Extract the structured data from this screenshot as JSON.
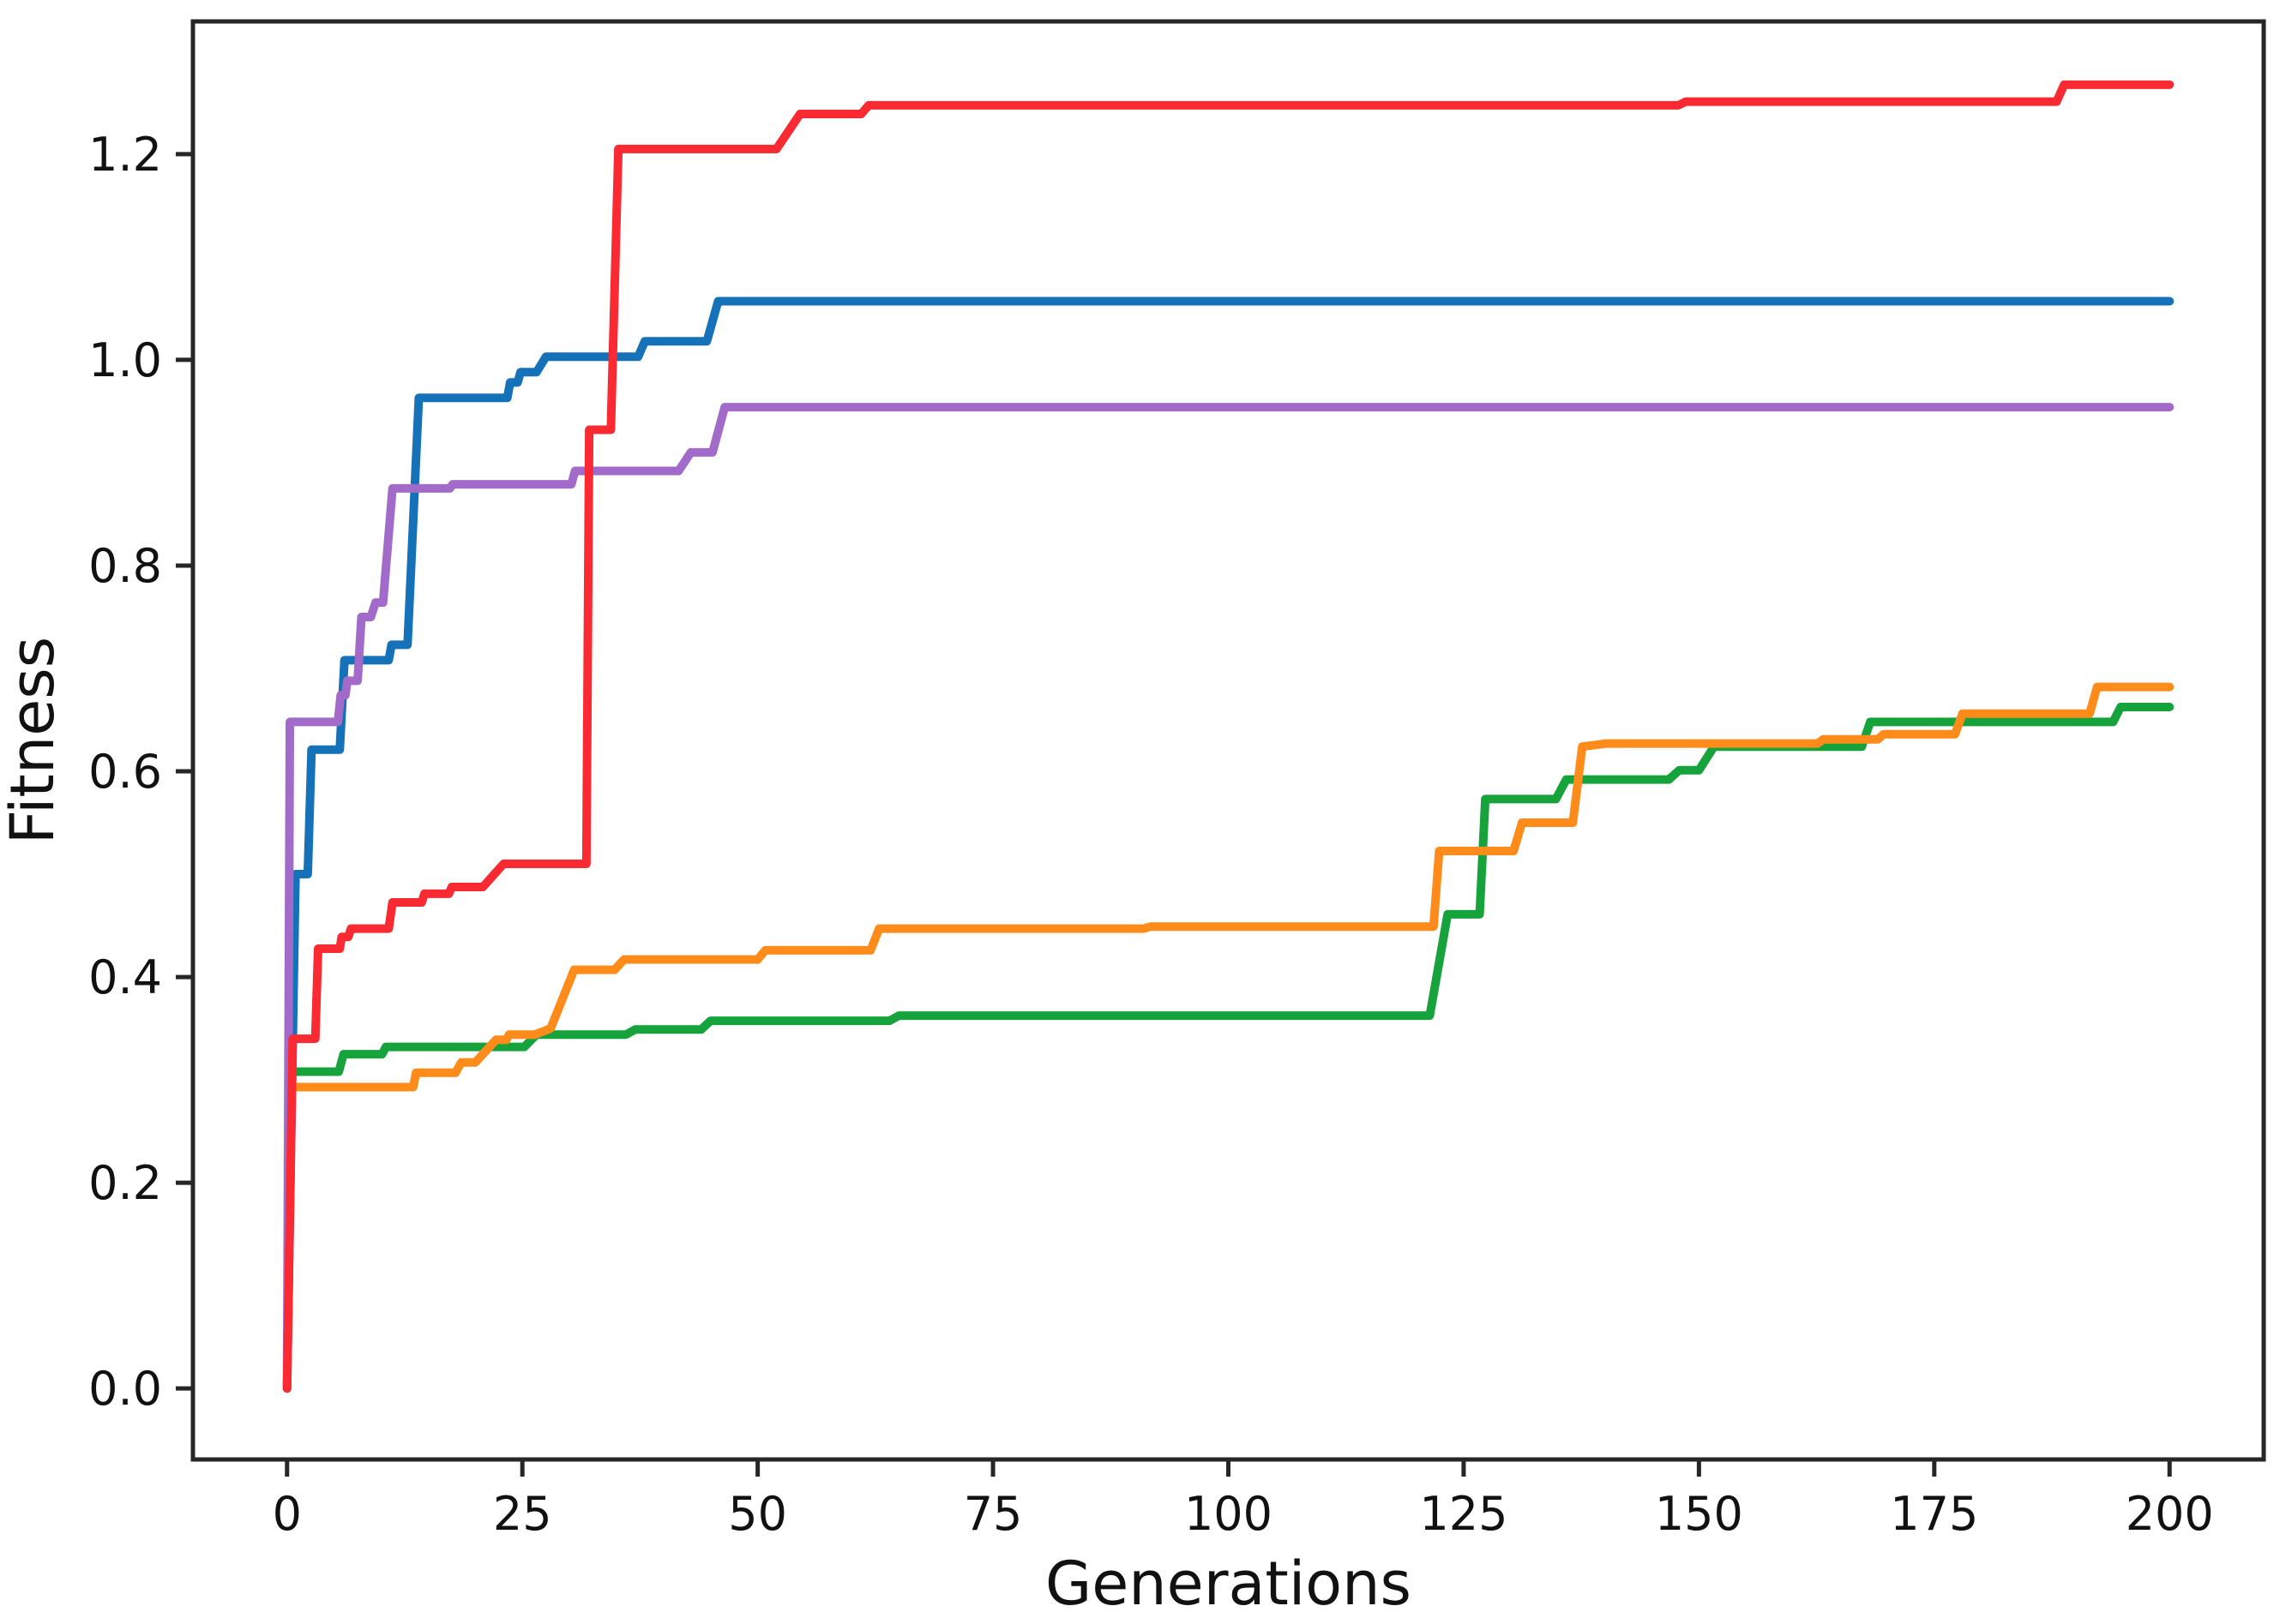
{
  "figure": {
    "background": "#ffffff",
    "spine_color": "#262626",
    "tick_color": "#262626",
    "text_color": "#111111"
  },
  "chart_data": {
    "type": "line",
    "title": "",
    "xlabel": "Generations",
    "ylabel": "Fitness",
    "grid": false,
    "legend": "none",
    "xlim": [
      -10,
      210
    ],
    "ylim": [
      -0.069,
      1.329
    ],
    "x_ticks": [
      0,
      25,
      50,
      75,
      100,
      125,
      150,
      175,
      200
    ],
    "y_ticks": [
      "0.0",
      "0.2",
      "0.4",
      "0.6",
      "0.8",
      "1.0",
      "1.2"
    ],
    "line_width": 10,
    "series": [
      {
        "id": "blue",
        "color": "#1572b8",
        "points": [
          [
            0,
            0
          ],
          [
            0.9,
            0.5
          ],
          [
            2.2,
            0.5
          ],
          [
            2.6,
            0.621
          ],
          [
            5.6,
            0.621
          ],
          [
            6.1,
            0.708
          ],
          [
            10.8,
            0.708
          ],
          [
            11.1,
            0.723
          ],
          [
            12.8,
            0.723
          ],
          [
            14.0,
            0.963
          ],
          [
            23.4,
            0.963
          ],
          [
            23.7,
            0.978
          ],
          [
            24.5,
            0.978
          ],
          [
            24.8,
            0.988
          ],
          [
            26.5,
            0.988
          ],
          [
            27.5,
            1.003
          ],
          [
            37.3,
            1.003
          ],
          [
            38.0,
            1.018
          ],
          [
            44.6,
            1.018
          ],
          [
            45.8,
            1.057
          ],
          [
            200,
            1.057
          ]
        ]
      },
      {
        "id": "green",
        "color": "#17a33c",
        "points": [
          [
            0,
            0
          ],
          [
            0.5,
            0.308
          ],
          [
            5.5,
            0.308
          ],
          [
            6.0,
            0.325
          ],
          [
            10.1,
            0.325
          ],
          [
            10.5,
            0.332
          ],
          [
            25.2,
            0.332
          ],
          [
            26.5,
            0.344
          ],
          [
            36.0,
            0.344
          ],
          [
            37.0,
            0.349
          ],
          [
            44.0,
            0.349
          ],
          [
            45.0,
            0.3575
          ],
          [
            64.0,
            0.3575
          ],
          [
            65.0,
            0.3625
          ],
          [
            121.4,
            0.3625
          ],
          [
            123.3,
            0.461
          ],
          [
            126.7,
            0.461
          ],
          [
            127.3,
            0.573
          ],
          [
            134.8,
            0.573
          ],
          [
            135.9,
            0.592
          ],
          [
            146.8,
            0.592
          ],
          [
            147.9,
            0.601
          ],
          [
            150.0,
            0.601
          ],
          [
            151.6,
            0.624
          ],
          [
            167.3,
            0.624
          ],
          [
            168.2,
            0.648
          ],
          [
            194.0,
            0.648
          ],
          [
            194.8,
            0.6625
          ],
          [
            200,
            0.6625
          ]
        ]
      },
      {
        "id": "orange",
        "color": "#ff8c1a",
        "points": [
          [
            0,
            0
          ],
          [
            0.4,
            0.293
          ],
          [
            13.4,
            0.293
          ],
          [
            13.7,
            0.307
          ],
          [
            17.9,
            0.307
          ],
          [
            18.5,
            0.317
          ],
          [
            20.0,
            0.317
          ],
          [
            22.2,
            0.339
          ],
          [
            23.3,
            0.339
          ],
          [
            23.6,
            0.344
          ],
          [
            26.3,
            0.344
          ],
          [
            28.0,
            0.35
          ],
          [
            30.5,
            0.407
          ],
          [
            34.8,
            0.407
          ],
          [
            35.8,
            0.417
          ],
          [
            50.0,
            0.417
          ],
          [
            50.8,
            0.426
          ],
          [
            62.0,
            0.426
          ],
          [
            62.9,
            0.447
          ],
          [
            91.0,
            0.447
          ],
          [
            91.7,
            0.449
          ],
          [
            121.8,
            0.449
          ],
          [
            122.4,
            0.5225
          ],
          [
            130.3,
            0.5225
          ],
          [
            131.2,
            0.55
          ],
          [
            136.6,
            0.55
          ],
          [
            137.6,
            0.624
          ],
          [
            140.2,
            0.627
          ],
          [
            162.6,
            0.627
          ],
          [
            163.2,
            0.631
          ],
          [
            169.0,
            0.631
          ],
          [
            169.6,
            0.636
          ],
          [
            177.2,
            0.636
          ],
          [
            178.0,
            0.656
          ],
          [
            191.5,
            0.656
          ],
          [
            192.3,
            0.682
          ],
          [
            200,
            0.682
          ]
        ]
      },
      {
        "id": "purple",
        "color": "#a26bc9",
        "points": [
          [
            0,
            0
          ],
          [
            0.3,
            0.648
          ],
          [
            5.4,
            0.648
          ],
          [
            5.7,
            0.674
          ],
          [
            6.2,
            0.674
          ],
          [
            6.4,
            0.688
          ],
          [
            7.5,
            0.688
          ],
          [
            7.9,
            0.75
          ],
          [
            8.9,
            0.75
          ],
          [
            9.4,
            0.764
          ],
          [
            10.2,
            0.764
          ],
          [
            11.2,
            0.875
          ],
          [
            17.3,
            0.875
          ],
          [
            17.6,
            0.879
          ],
          [
            30.2,
            0.879
          ],
          [
            30.6,
            0.892
          ],
          [
            41.6,
            0.892
          ],
          [
            42.9,
            0.91
          ],
          [
            45.2,
            0.91
          ],
          [
            46.5,
            0.954
          ],
          [
            200,
            0.954
          ]
        ]
      },
      {
        "id": "red",
        "color": "#f92a32",
        "points": [
          [
            0,
            0
          ],
          [
            0.6,
            0.34
          ],
          [
            3.0,
            0.34
          ],
          [
            3.3,
            0.4275
          ],
          [
            5.6,
            0.4275
          ],
          [
            5.8,
            0.439
          ],
          [
            6.5,
            0.439
          ],
          [
            6.8,
            0.447
          ],
          [
            10.8,
            0.447
          ],
          [
            11.2,
            0.4725
          ],
          [
            14.3,
            0.4725
          ],
          [
            14.6,
            0.481
          ],
          [
            17.2,
            0.481
          ],
          [
            17.5,
            0.4875
          ],
          [
            20.8,
            0.4875
          ],
          [
            23.0,
            0.51
          ],
          [
            31.8,
            0.51
          ],
          [
            32.1,
            0.932
          ],
          [
            34.4,
            0.932
          ],
          [
            35.2,
            1.205
          ],
          [
            52.0,
            1.205
          ],
          [
            54.5,
            1.239
          ],
          [
            61.0,
            1.239
          ],
          [
            61.8,
            1.2475
          ],
          [
            147.8,
            1.2475
          ],
          [
            148.6,
            1.251
          ],
          [
            188.0,
            1.251
          ],
          [
            188.8,
            1.2675
          ],
          [
            200,
            1.2675
          ]
        ]
      }
    ]
  }
}
